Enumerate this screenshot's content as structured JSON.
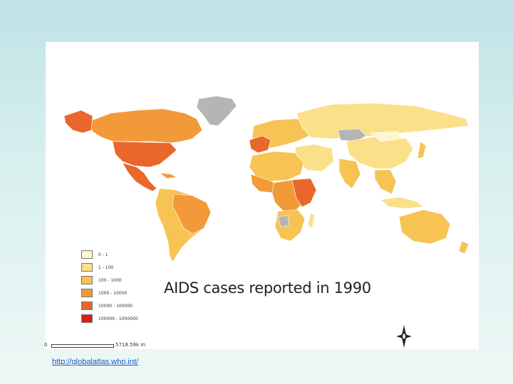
{
  "map": {
    "title": "AIDS cases reported in  1990",
    "legend": [
      {
        "label": "0 - 1",
        "color": "#fdf6cf"
      },
      {
        "label": "1 - 100",
        "color": "#fbe08a"
      },
      {
        "label": "100 - 1000",
        "color": "#f7c352"
      },
      {
        "label": "1000 - 10000",
        "color": "#f29a3a"
      },
      {
        "label": "10000 - 100000",
        "color": "#e8672a"
      },
      {
        "label": "100000 - 1000000",
        "color": "#dd1c12"
      }
    ],
    "no_data_color": "#b5b5b5",
    "scale_zero": "0",
    "scale_label": "5718.59k m"
  },
  "footer": {
    "source_url": "http://globalatlas.who.int/"
  },
  "icons": {
    "compass": "compass-rose-icon"
  }
}
